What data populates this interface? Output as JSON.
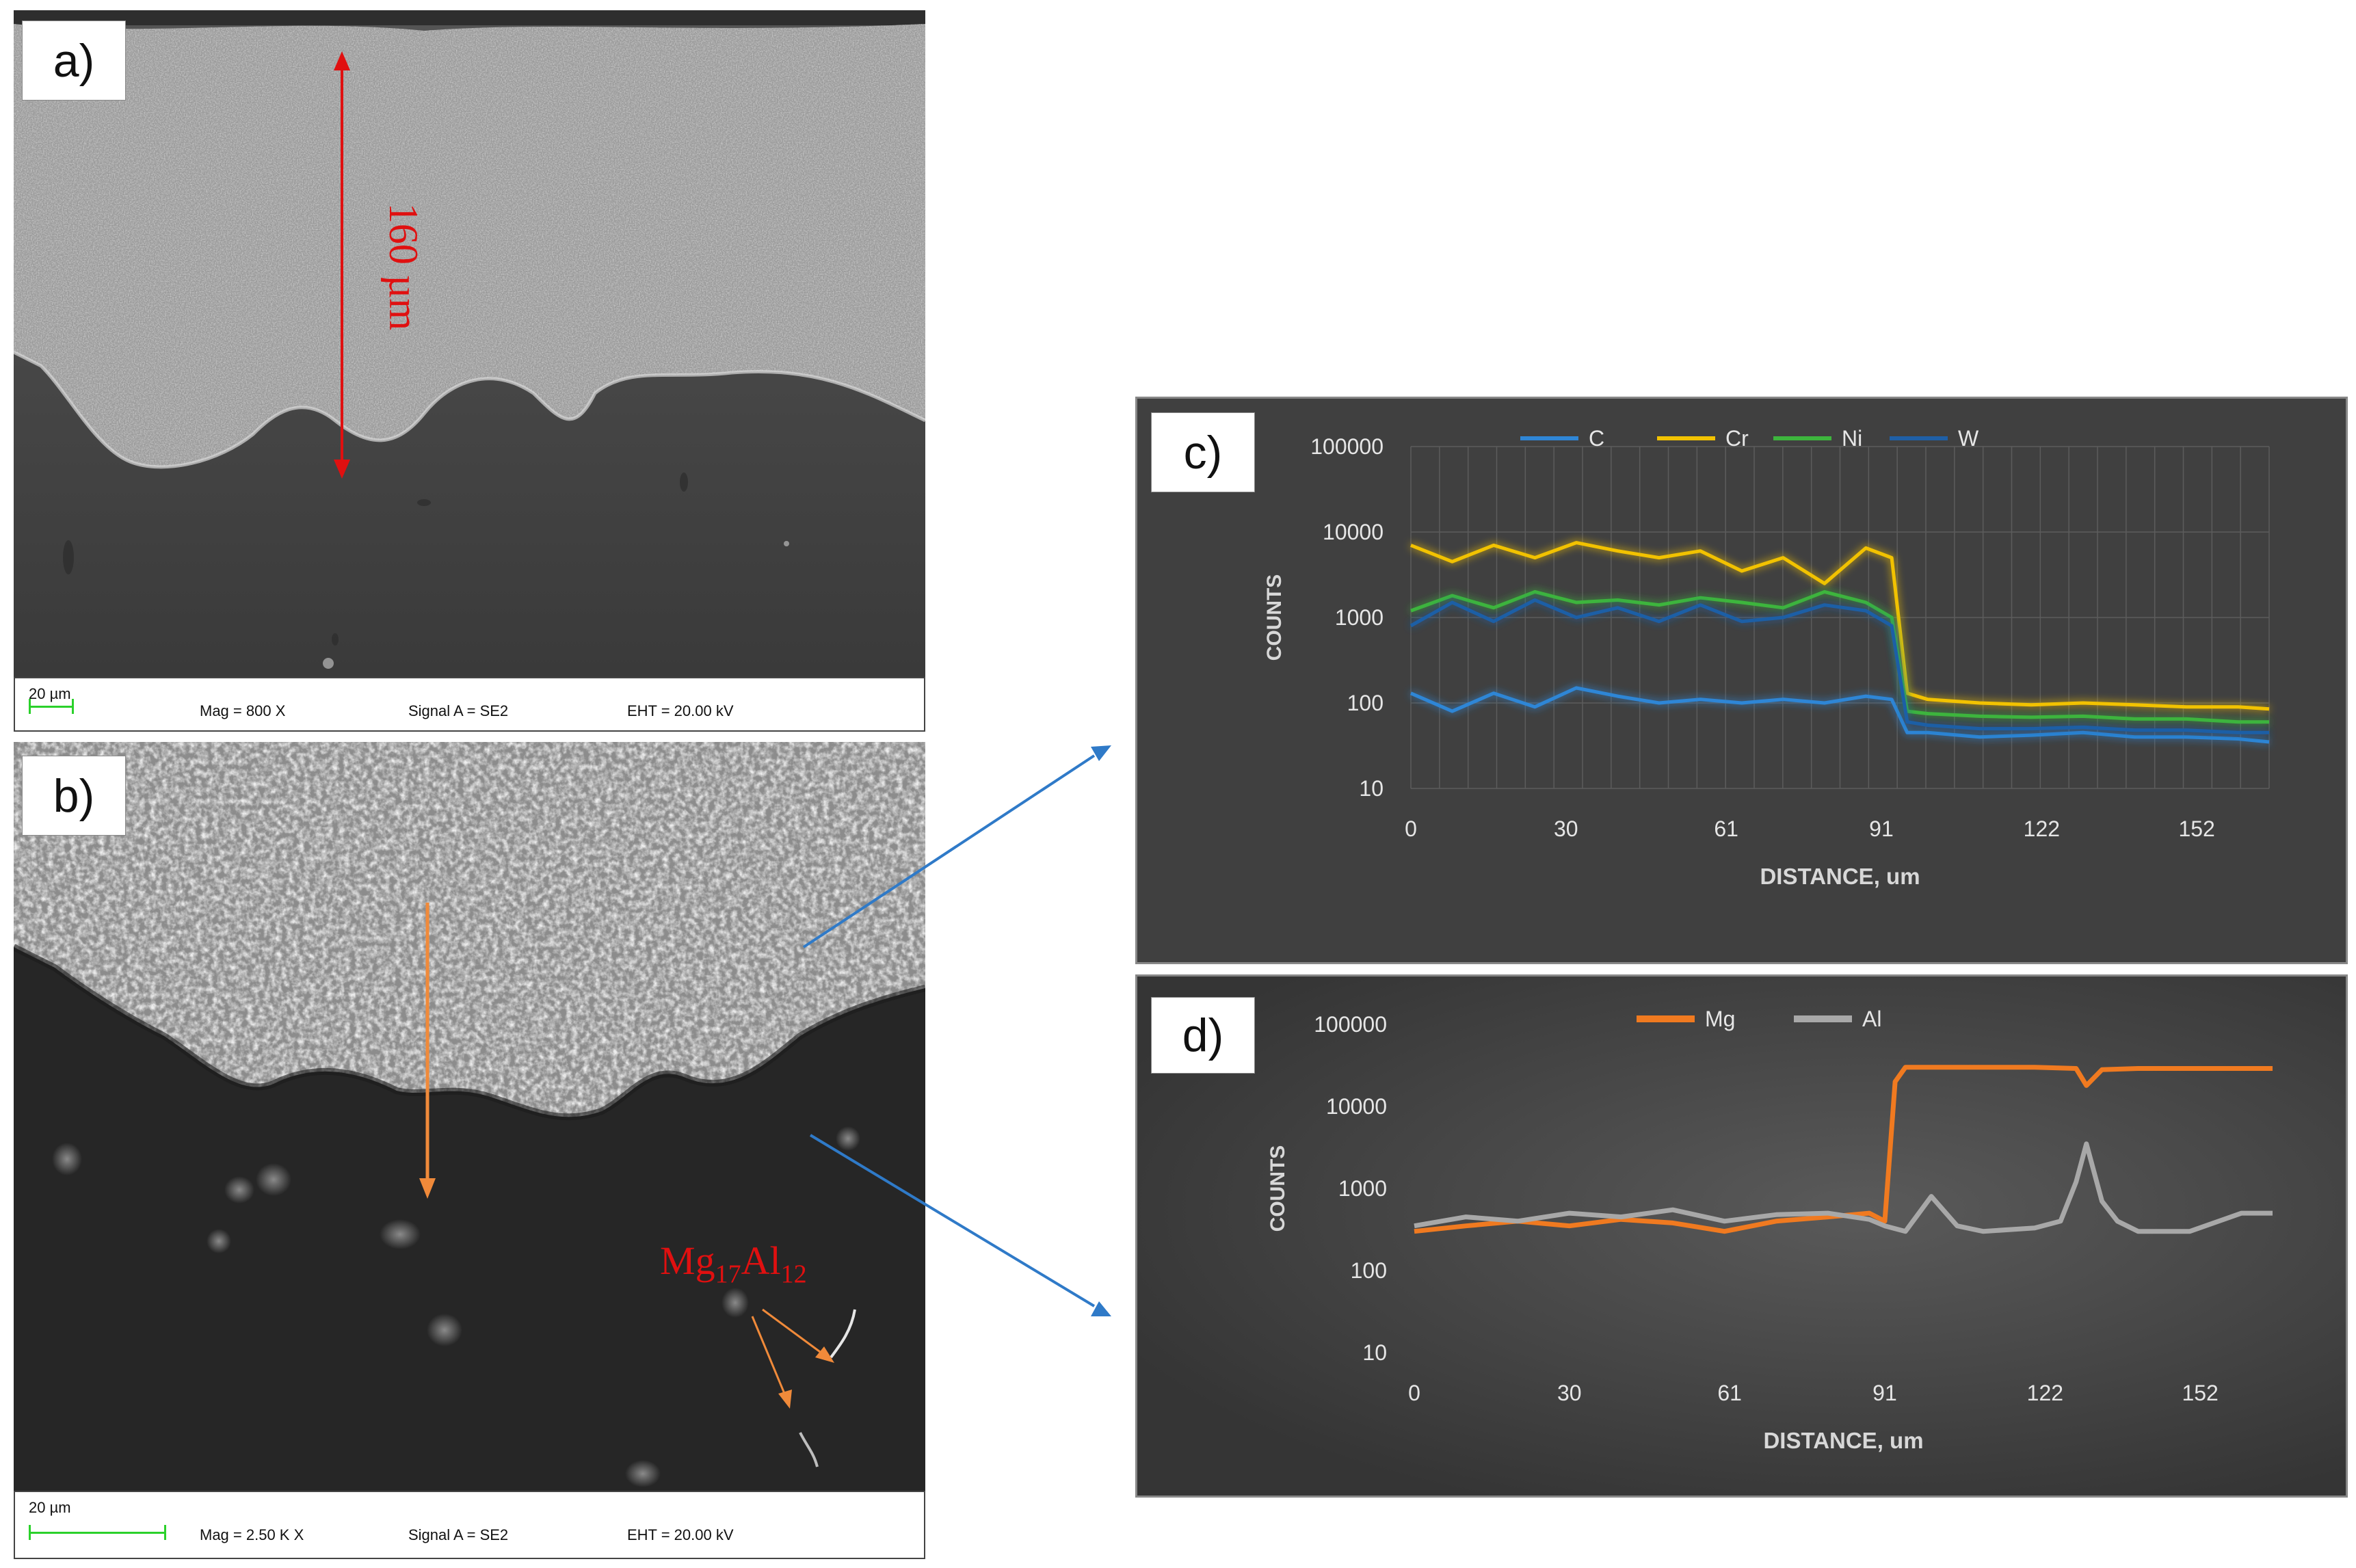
{
  "panels": {
    "a": {
      "label": "a)",
      "thickness_label": "160 µm",
      "scale": "20 µm",
      "mag": "Mag =   800 X",
      "signal": "Signal A = SE2",
      "eht": "EHT = 20.00 kV"
    },
    "b": {
      "label": "b)",
      "phase_main": "Mg",
      "phase_sub1": "17",
      "phase_mid": "Al",
      "phase_sub2": "12",
      "scale": "20 µm",
      "mag": "Mag =   2.50 K X",
      "signal": "Signal A = SE2",
      "eht": "EHT = 20.00 kV"
    },
    "c": {
      "label": "c)"
    },
    "d": {
      "label": "d)"
    }
  },
  "colors": {
    "C": "#2f86d6",
    "Cr": "#f2c200",
    "Ni": "#3db53d",
    "W": "#1f5fa6",
    "Mg": "#f07a20",
    "Al": "#a8a8a8",
    "red": "#e01010",
    "orange_arrow": "#f08a3a",
    "blue_arrow": "#2f7ac8"
  },
  "chart_data": [
    {
      "type": "line",
      "panel": "c",
      "xlabel": "DISTANCE, um",
      "ylabel": "COUNTS",
      "yscale": "log",
      "ylim": [
        10,
        100000
      ],
      "xlim": [
        0,
        166
      ],
      "xticks": [
        "0",
        "30",
        "61",
        "91",
        "122",
        "152"
      ],
      "yticks": [
        "10",
        "100",
        "1000",
        "10000",
        "100000"
      ],
      "grid": true,
      "legend_position": "top",
      "series": [
        {
          "name": "C",
          "x": [
            0,
            8,
            16,
            24,
            32,
            40,
            48,
            56,
            64,
            72,
            80,
            88,
            93,
            96,
            100,
            110,
            120,
            130,
            140,
            150,
            160,
            166
          ],
          "values": [
            130,
            80,
            130,
            90,
            150,
            120,
            100,
            110,
            100,
            110,
            100,
            120,
            110,
            45,
            45,
            40,
            42,
            45,
            40,
            40,
            38,
            35
          ]
        },
        {
          "name": "Cr",
          "x": [
            0,
            8,
            16,
            24,
            32,
            40,
            48,
            56,
            64,
            72,
            80,
            88,
            93,
            96,
            100,
            110,
            120,
            130,
            140,
            150,
            160,
            166
          ],
          "values": [
            7000,
            4500,
            7000,
            5000,
            7500,
            6000,
            5000,
            6000,
            3500,
            5000,
            2500,
            6500,
            5000,
            130,
            110,
            100,
            95,
            100,
            95,
            90,
            90,
            85
          ]
        },
        {
          "name": "Ni",
          "x": [
            0,
            8,
            16,
            24,
            32,
            40,
            48,
            56,
            64,
            72,
            80,
            88,
            93,
            96,
            100,
            110,
            120,
            130,
            140,
            150,
            160,
            166
          ],
          "values": [
            1200,
            1800,
            1300,
            2000,
            1500,
            1600,
            1400,
            1700,
            1500,
            1300,
            2000,
            1500,
            1000,
            80,
            75,
            70,
            68,
            70,
            65,
            65,
            60,
            60
          ]
        },
        {
          "name": "W",
          "x": [
            0,
            8,
            16,
            24,
            32,
            40,
            48,
            56,
            64,
            72,
            80,
            88,
            93,
            96,
            100,
            110,
            120,
            130,
            140,
            150,
            160,
            166
          ],
          "values": [
            800,
            1500,
            900,
            1600,
            1000,
            1300,
            900,
            1400,
            900,
            1000,
            1400,
            1200,
            800,
            60,
            55,
            50,
            50,
            52,
            48,
            48,
            45,
            45
          ]
        }
      ]
    },
    {
      "type": "line",
      "panel": "d",
      "xlabel": "DISTANCE, um",
      "ylabel": "COUNTS",
      "yscale": "log",
      "ylim": [
        10,
        100000
      ],
      "xlim": [
        0,
        166
      ],
      "xticks": [
        "0",
        "30",
        "61",
        "91",
        "122",
        "152"
      ],
      "yticks": [
        "10",
        "100",
        "1000",
        "10000",
        "100000"
      ],
      "grid": false,
      "legend_position": "top",
      "series": [
        {
          "name": "Mg",
          "x": [
            0,
            10,
            20,
            30,
            40,
            50,
            60,
            70,
            80,
            88,
            91,
            93,
            95,
            100,
            110,
            120,
            128,
            130,
            133,
            140,
            150,
            160,
            166
          ],
          "values": [
            300,
            350,
            400,
            350,
            420,
            380,
            300,
            400,
            450,
            500,
            400,
            20000,
            30000,
            30000,
            30000,
            30000,
            29000,
            18000,
            28000,
            29000,
            29000,
            29000,
            29000
          ]
        },
        {
          "name": "Al",
          "x": [
            0,
            10,
            20,
            30,
            40,
            50,
            60,
            70,
            80,
            88,
            91,
            95,
            100,
            105,
            110,
            120,
            125,
            128,
            130,
            133,
            136,
            140,
            150,
            160,
            166
          ],
          "values": [
            350,
            450,
            400,
            500,
            450,
            550,
            400,
            480,
            500,
            420,
            350,
            300,
            800,
            350,
            300,
            330,
            400,
            1200,
            3500,
            700,
            400,
            300,
            300,
            500,
            500
          ]
        }
      ]
    }
  ]
}
